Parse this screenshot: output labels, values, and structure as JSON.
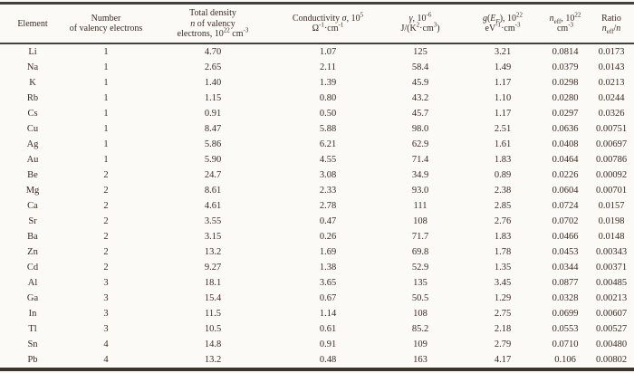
{
  "colors": {
    "text": "#3c2a21",
    "rule": "#43413e",
    "background": "#fbfaf7"
  },
  "table": {
    "columns": [
      {
        "id": "element",
        "label_lines": [
          "Element"
        ]
      },
      {
        "id": "valency",
        "label_lines": [
          "Number",
          "of valency electrons"
        ]
      },
      {
        "id": "total-density",
        "label_lines": [
          "Total density",
          "*n* of valency",
          "electrons, 10^22^ cm^-3^"
        ]
      },
      {
        "id": "conductivity",
        "label_lines": [
          "Conductivity *σ*, 10^5^",
          "Ω^-1^·cm^-1^"
        ]
      },
      {
        "id": "gamma",
        "label_lines": [
          "*γ*, 10^-6^",
          "J/(K^2^·cm^3^)"
        ]
      },
      {
        "id": "dos",
        "label_lines": [
          "*g*(*E~F~*), 10^22^",
          "eV^-1^·cm^-3^"
        ]
      },
      {
        "id": "n-eff",
        "label_lines": [
          "*n*~eff~, 10^22^",
          "cm^-3^"
        ]
      },
      {
        "id": "ratio",
        "label_lines": [
          "Ratio",
          "*n*~eff~/*n*"
        ]
      }
    ],
    "rows": [
      [
        "Li",
        "1",
        "4.70",
        "1.07",
        "125",
        "3.21",
        "0.0814",
        "0.0173"
      ],
      [
        "Na",
        "1",
        "2.65",
        "2.11",
        "58.4",
        "1.49",
        "0.0379",
        "0.0143"
      ],
      [
        "K",
        "1",
        "1.40",
        "1.39",
        "45.9",
        "1.17",
        "0.0298",
        "0.0213"
      ],
      [
        "Rb",
        "1",
        "1.15",
        "0.80",
        "43.2",
        "1.10",
        "0.0280",
        "0.0244"
      ],
      [
        "Cs",
        "1",
        "0.91",
        "0.50",
        "45.7",
        "1.17",
        "0.0297",
        "0.0326"
      ],
      [
        "Cu",
        "1",
        "8.47",
        "5.88",
        "98.0",
        "2.51",
        "0.0636",
        "0.00751"
      ],
      [
        "Ag",
        "1",
        "5.86",
        "6.21",
        "62.9",
        "1.61",
        "0.0408",
        "0.00697"
      ],
      [
        "Au",
        "1",
        "5.90",
        "4.55",
        "71.4",
        "1.83",
        "0.0464",
        "0.00786"
      ],
      [
        "Be",
        "2",
        "24.7",
        "3.08",
        "34.9",
        "0.89",
        "0.0226",
        "0.00092"
      ],
      [
        "Mg",
        "2",
        "8.61",
        "2.33",
        "93.0",
        "2.38",
        "0.0604",
        "0.00701"
      ],
      [
        "Ca",
        "2",
        "4.61",
        "2.78",
        "111",
        "2.85",
        "0.0724",
        "0.0157"
      ],
      [
        "Sr",
        "2",
        "3.55",
        "0.47",
        "108",
        "2.76",
        "0.0702",
        "0.0198"
      ],
      [
        "Ba",
        "2",
        "3.15",
        "0.26",
        "71.7",
        "1.83",
        "0.0466",
        "0.0148"
      ],
      [
        "Zn",
        "2",
        "13.2",
        "1.69",
        "69.8",
        "1.78",
        "0.0453",
        "0.00343"
      ],
      [
        "Cd",
        "2",
        "9.27",
        "1.38",
        "52.9",
        "1.35",
        "0.0344",
        "0.00371"
      ],
      [
        "Al",
        "3",
        "18.1",
        "3.65",
        "135",
        "3.45",
        "0.0877",
        "0.00485"
      ],
      [
        "Ga",
        "3",
        "15.4",
        "0.67",
        "50.5",
        "1.29",
        "0.0328",
        "0.00213"
      ],
      [
        "In",
        "3",
        "11.5",
        "1.14",
        "108",
        "2.75",
        "0.0699",
        "0.00607"
      ],
      [
        "Tl",
        "3",
        "10.5",
        "0.61",
        "85.2",
        "2.18",
        "0.0553",
        "0.00527"
      ],
      [
        "Sn",
        "4",
        "14.8",
        "0.91",
        "109",
        "2.79",
        "0.0710",
        "0.00480"
      ],
      [
        "Pb",
        "4",
        "13.2",
        "0.48",
        "163",
        "4.17",
        "0.106",
        "0.00802"
      ]
    ]
  }
}
